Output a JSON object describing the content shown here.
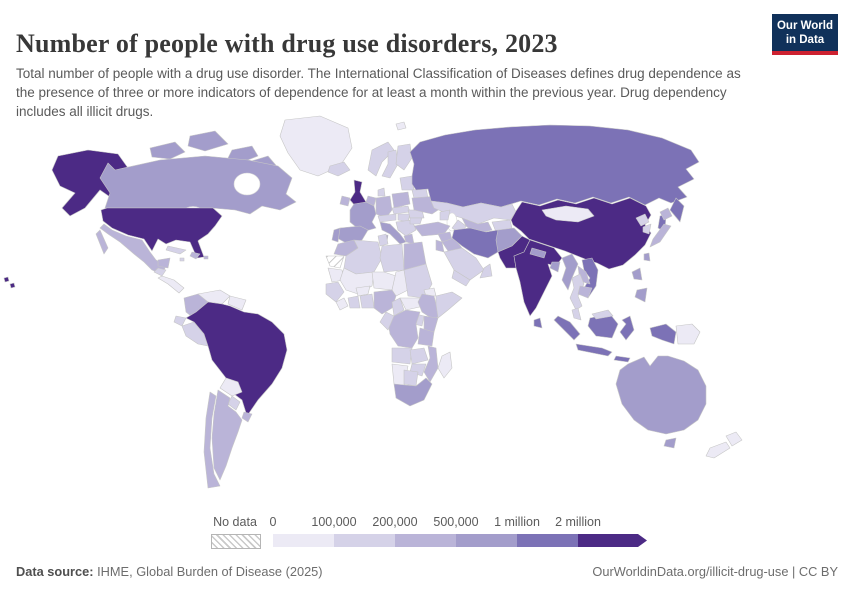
{
  "header": {
    "title": "Number of people with drug use disorders, 2023",
    "subtitle": "Total number of people with a drug use disorder. The International Classification of Diseases defines drug dependence as the presence of three or more indicators of dependence for at least a month within the previous year. Drug dependency includes all illicit drugs.",
    "logo_line1": "Our World",
    "logo_line2": "in Data",
    "logo_bg": "#10315a",
    "logo_red": "#cd2130"
  },
  "legend": {
    "no_data_label": "No data",
    "ticks": [
      "0",
      "100,000",
      "200,000",
      "500,000",
      "1 million",
      "2 million"
    ],
    "bucket_colors": [
      "#eceaf5",
      "#d5d2e8",
      "#bab4d8",
      "#a39dcb",
      "#7c72b6",
      "#4c2a85"
    ]
  },
  "footer": {
    "source_label": "Data source:",
    "source_text": " IHME, Global Burden of Disease (2025)",
    "license_text": "OurWorldinData.org/illicit-drug-use | CC BY"
  },
  "map": {
    "palette": {
      "b0": "#eceaf5",
      "b1": "#d5d2e8",
      "b2": "#bab4d8",
      "b3": "#a39dcb",
      "b4": "#7c72b6",
      "b5": "#4c2a85",
      "no_data": "hatch"
    },
    "regions": {
      "alaska": "b5",
      "hawaii": "b5",
      "usa": "b5",
      "canada": "b3",
      "arctic-islands": "b3",
      "greenland": "b0",
      "mexico": "b2",
      "baja": "b2",
      "yucatan": "b2",
      "guatemala": "b1",
      "central-america": "b0",
      "cuba": "b1",
      "jamaica": "b1",
      "hispaniola": "b2",
      "puerto-rico": "b2",
      "colombia": "b2",
      "venezuela": "b0",
      "guyanas": "b0",
      "ecuador": "b1",
      "peru": "b1",
      "brazil": "b5",
      "bolivia": "b0",
      "paraguay": "b1",
      "uruguay": "b2",
      "chile": "b2",
      "argentina": "b2",
      "iceland": "b1",
      "svalbard": "b0",
      "uk": "b5",
      "ireland": "b2",
      "norway": "b1",
      "sweden": "b1",
      "finland": "b1",
      "denmark": "b1",
      "germany": "b2",
      "benelux": "b2",
      "poland": "b2",
      "czech-slovakia": "b1",
      "austria-switzerland": "b1",
      "hungary": "b1",
      "france": "b3",
      "spain": "b3",
      "portugal": "b3",
      "italy": "b3",
      "sicily": "b3",
      "sardinia": "b3",
      "balkans": "b1",
      "greece": "b2",
      "romania": "b1",
      "bulgaria": "b1",
      "baltics": "b1",
      "belarus": "b1",
      "ukraine": "b2",
      "russia": "b4",
      "kamchatka": "b4",
      "sakhalin": "b4",
      "kazakhstan": "b1",
      "uzbekistan": "b2",
      "turkmenistan": "b1",
      "kyrgyz-tajik": "b1",
      "caucasus": "b1",
      "turkey": "b2",
      "syria": "b2",
      "israel-jordan": "b2",
      "iraq": "b2",
      "saudi-arabia": "b1",
      "yemen": "b1",
      "oman": "b1",
      "iran": "b4",
      "afghanistan": "b3",
      "pakistan": "b5",
      "india": "b5",
      "nepal": "b3",
      "bangladesh": "b3",
      "sri-lanka": "b4",
      "myanmar": "b3",
      "thailand": "b1",
      "laos": "b2",
      "vietnam": "b4",
      "cambodia": "b2",
      "malaysia": "b1",
      "east-malaysia": "b1",
      "china": "b5",
      "mongolia": "b0",
      "taiwan": "b3",
      "north-korea": "b1",
      "south-korea": "b1",
      "japan-hokkaido": "b2",
      "japan-honshu": "b2",
      "philippines-luzon": "b3",
      "philippines-south": "b3",
      "sumatra": "b4",
      "java": "b4",
      "kalimantan": "b4",
      "sulawesi": "b4",
      "lesser-sunda": "b4",
      "west-papua": "b4",
      "png": "b0",
      "australia": "b3",
      "tasmania": "b3",
      "nz-north": "b0",
      "nz-south": "b0",
      "morocco": "b2",
      "western-sahara": "no_data",
      "mauritania": "b0",
      "algeria": "b1",
      "tunisia": "b1",
      "libya": "b1",
      "egypt": "b2",
      "mali": "b0",
      "niger": "b0",
      "chad": "b0",
      "sudan": "b1",
      "eritrea": "b0",
      "senegal-guinea": "b1",
      "sierra-liberia": "b0",
      "ivory-coast": "b1",
      "ghana-benin": "b1",
      "burkina": "b0",
      "nigeria": "b2",
      "cameroon": "b1",
      "car": "b0",
      "ethiopia": "b2",
      "horn-somalia": "b1",
      "kenya": "b2",
      "uganda": "b1",
      "drc": "b2",
      "congo-gabon": "b1",
      "tanzania": "b2",
      "angola": "b1",
      "zambia": "b1",
      "mozambique": "b2",
      "zimbabwe": "b1",
      "namibia": "b0",
      "botswana": "b1",
      "south-africa": "b3",
      "madagascar": "b0"
    }
  }
}
